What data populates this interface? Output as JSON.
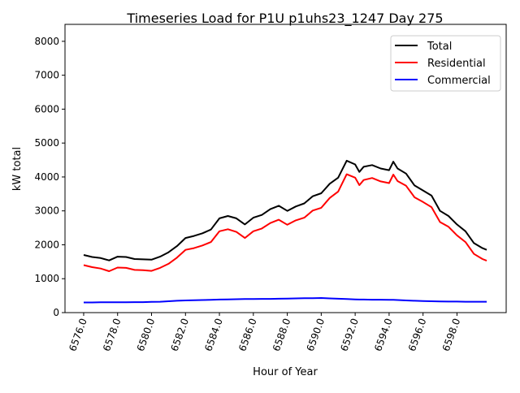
{
  "chart_data": {
    "type": "line",
    "title": "Timeseries Load for P1U p1uhs23_1247  Day 275",
    "xlabel": "Hour of Year",
    "ylabel": "kW total",
    "xlim": [
      6574.9,
      6600.9
    ],
    "ylim": [
      0,
      8500
    ],
    "xticks": [
      6576,
      6578,
      6580,
      6582,
      6584,
      6586,
      6588,
      6590,
      6592,
      6594,
      6596,
      6598
    ],
    "xtick_labels": [
      "6576.0",
      "6578.0",
      "6580.0",
      "6582.0",
      "6584.0",
      "6586.0",
      "6588.0",
      "6590.0",
      "6592.0",
      "6594.0",
      "6596.0",
      "6598.0"
    ],
    "yticks": [
      0,
      1000,
      2000,
      3000,
      4000,
      5000,
      6000,
      7000,
      8000
    ],
    "ytick_labels": [
      "0",
      "1000",
      "2000",
      "3000",
      "4000",
      "5000",
      "6000",
      "7000",
      "8000"
    ],
    "grid": false,
    "legend_position": "top-right",
    "x": [
      6576,
      6576.5,
      6577,
      6577.5,
      6578,
      6578.5,
      6579,
      6579.5,
      6580,
      6580.5,
      6581,
      6581.5,
      6582,
      6582.5,
      6583,
      6583.5,
      6584,
      6584.5,
      6585,
      6585.5,
      6586,
      6586.5,
      6587,
      6587.5,
      6588,
      6588.5,
      6589,
      6589.5,
      6590,
      6590.5,
      6591,
      6591.5,
      6592,
      6592.25,
      6592.5,
      6593,
      6593.5,
      6594,
      6594.25,
      6594.5,
      6595,
      6595.5,
      6596,
      6596.5,
      6597,
      6597.5,
      6598,
      6598.5,
      6599,
      6599.5,
      6599.75
    ],
    "series": [
      {
        "name": "Total",
        "color": "#000000",
        "values": [
          1700,
          1640,
          1610,
          1540,
          1650,
          1640,
          1580,
          1570,
          1560,
          1650,
          1780,
          1960,
          2200,
          2260,
          2340,
          2450,
          2780,
          2850,
          2780,
          2600,
          2800,
          2880,
          3050,
          3150,
          3000,
          3130,
          3220,
          3430,
          3520,
          3800,
          3980,
          4480,
          4370,
          4150,
          4300,
          4350,
          4250,
          4200,
          4450,
          4250,
          4100,
          3750,
          3600,
          3450,
          3000,
          2850,
          2600,
          2400,
          2050,
          1900,
          1850
        ]
      },
      {
        "name": "Residential",
        "color": "#ff0000",
        "values": [
          1400,
          1340,
          1300,
          1220,
          1330,
          1320,
          1260,
          1250,
          1230,
          1320,
          1440,
          1620,
          1850,
          1900,
          1980,
          2080,
          2400,
          2460,
          2380,
          2200,
          2400,
          2480,
          2640,
          2740,
          2590,
          2720,
          2800,
          3010,
          3090,
          3380,
          3570,
          4080,
          3980,
          3760,
          3910,
          3970,
          3870,
          3820,
          4070,
          3880,
          3740,
          3400,
          3260,
          3110,
          2670,
          2530,
          2280,
          2080,
          1730,
          1580,
          1530
        ]
      },
      {
        "name": "Commercial",
        "color": "#0000ff",
        "values": [
          300,
          300,
          305,
          305,
          305,
          305,
          310,
          310,
          315,
          320,
          335,
          350,
          360,
          365,
          370,
          375,
          385,
          390,
          395,
          400,
          400,
          405,
          405,
          410,
          415,
          420,
          425,
          425,
          430,
          420,
          410,
          400,
          390,
          385,
          385,
          380,
          380,
          375,
          375,
          370,
          360,
          350,
          340,
          335,
          330,
          325,
          325,
          320,
          320,
          320,
          320
        ]
      }
    ]
  }
}
